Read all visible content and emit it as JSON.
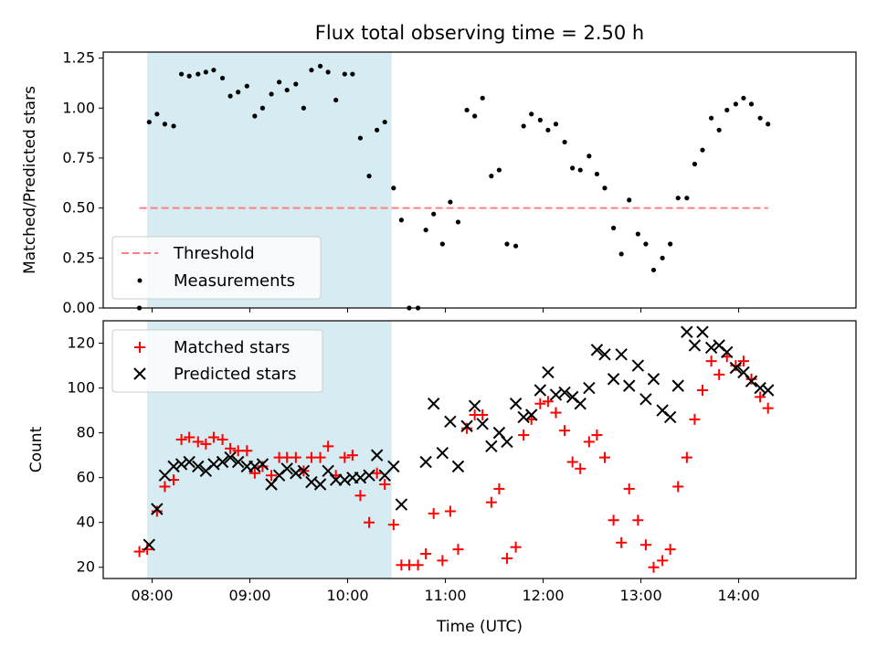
{
  "chart_data": [
    {
      "type": "scatter",
      "title": "Flux total observing time = 2.50 h",
      "xlabel": "",
      "ylabel": "Matched/Predicted stars",
      "xlim": [
        7.5,
        15.2
      ],
      "ylim": [
        0,
        1.28
      ],
      "yticks": [
        0.0,
        0.25,
        0.5,
        0.75,
        1.0,
        1.25
      ],
      "ytick_labels": [
        "0.00",
        "0.25",
        "0.50",
        "0.75",
        "1.00",
        "1.25"
      ],
      "grid": false,
      "legend_placement": "lower-left",
      "shaded_span": {
        "x": [
          7.95,
          10.45
        ],
        "color": "#add8e6"
      },
      "series": [
        {
          "name": "Threshold",
          "style": "dashed-line",
          "color": "#ff8080",
          "x": [
            7.87,
            14.3
          ],
          "y": [
            0.5,
            0.5
          ]
        },
        {
          "name": "Measurements",
          "style": "dot",
          "color": "#000000",
          "x": [
            7.87,
            7.97,
            8.05,
            8.13,
            8.22,
            8.3,
            8.38,
            8.47,
            8.55,
            8.63,
            8.72,
            8.8,
            8.88,
            8.97,
            9.05,
            9.13,
            9.22,
            9.3,
            9.38,
            9.47,
            9.55,
            9.63,
            9.72,
            9.8,
            9.88,
            9.97,
            10.05,
            10.13,
            10.22,
            10.3,
            10.38,
            10.47,
            10.55,
            10.63,
            10.72,
            10.8,
            10.88,
            10.97,
            11.05,
            11.13,
            11.22,
            11.3,
            11.38,
            11.47,
            11.55,
            11.63,
            11.72,
            11.8,
            11.88,
            11.97,
            12.05,
            12.13,
            12.22,
            12.3,
            12.38,
            12.47,
            12.55,
            12.63,
            12.72,
            12.8,
            12.88,
            12.97,
            13.05,
            13.13,
            13.22,
            13.3,
            13.38,
            13.47,
            13.55,
            13.63,
            13.72,
            13.8,
            13.88,
            13.97,
            14.05,
            14.13,
            14.22,
            14.3
          ],
          "y": [
            0.0,
            0.93,
            0.97,
            0.92,
            0.91,
            1.17,
            1.16,
            1.17,
            1.18,
            1.19,
            1.15,
            1.06,
            1.08,
            1.11,
            0.96,
            1.0,
            1.07,
            1.13,
            1.09,
            1.12,
            1.0,
            1.19,
            1.21,
            1.18,
            1.04,
            1.17,
            1.17,
            0.85,
            0.66,
            0.89,
            0.93,
            0.6,
            0.44,
            0.0,
            0.0,
            0.39,
            0.47,
            0.32,
            0.53,
            0.43,
            0.99,
            0.96,
            1.05,
            0.66,
            0.69,
            0.32,
            0.31,
            0.91,
            0.97,
            0.94,
            0.89,
            0.92,
            0.83,
            0.7,
            0.69,
            0.76,
            0.67,
            0.6,
            0.4,
            0.27,
            0.54,
            0.37,
            0.32,
            0.19,
            0.25,
            0.32,
            0.55,
            0.55,
            0.72,
            0.79,
            0.95,
            0.89,
            0.99,
            1.02,
            1.05,
            1.02,
            0.95,
            0.92
          ]
        }
      ]
    },
    {
      "type": "scatter",
      "title": "",
      "xlabel": "Time (UTC)",
      "ylabel": "Count",
      "xlim": [
        7.5,
        15.2
      ],
      "ylim": [
        15,
        130
      ],
      "xticks": [
        8,
        9,
        10,
        11,
        12,
        13,
        14
      ],
      "xtick_labels": [
        "08:00",
        "09:00",
        "10:00",
        "11:00",
        "12:00",
        "13:00",
        "14:00"
      ],
      "yticks": [
        20,
        40,
        60,
        80,
        100,
        120
      ],
      "ytick_labels": [
        "20",
        "40",
        "60",
        "80",
        "100",
        "120"
      ],
      "grid": false,
      "legend_placement": "upper-left",
      "shaded_span": {
        "x": [
          7.95,
          10.45
        ],
        "color": "#add8e6"
      },
      "series": [
        {
          "name": "Matched stars",
          "style": "plus",
          "color": "#ff0000",
          "x": [
            7.87,
            7.95,
            8.05,
            8.13,
            8.22,
            8.3,
            8.38,
            8.47,
            8.55,
            8.63,
            8.72,
            8.8,
            8.88,
            8.97,
            9.05,
            9.13,
            9.22,
            9.3,
            9.38,
            9.47,
            9.55,
            9.63,
            9.72,
            9.8,
            9.88,
            9.97,
            10.05,
            10.13,
            10.22,
            10.3,
            10.38,
            10.47,
            10.55,
            10.63,
            10.72,
            10.8,
            10.88,
            10.97,
            11.05,
            11.13,
            11.22,
            11.3,
            11.38,
            11.47,
            11.55,
            11.63,
            11.72,
            11.8,
            11.88,
            11.97,
            12.05,
            12.13,
            12.22,
            12.3,
            12.38,
            12.47,
            12.55,
            12.63,
            12.72,
            12.8,
            12.88,
            12.97,
            13.05,
            13.13,
            13.22,
            13.3,
            13.38,
            13.47,
            13.55,
            13.63,
            13.72,
            13.8,
            13.88,
            13.97,
            14.05,
            14.13,
            14.22,
            14.3
          ],
          "y": [
            27,
            28,
            45,
            56,
            59,
            77,
            78,
            76,
            75,
            78,
            77,
            73,
            72,
            72,
            62,
            65,
            61,
            69,
            69,
            69,
            63,
            69,
            69,
            74,
            61,
            69,
            70,
            52,
            40,
            62,
            57,
            39,
            21,
            21,
            21,
            26,
            44,
            23,
            45,
            28,
            82,
            88,
            88,
            49,
            55,
            24,
            29,
            79,
            86,
            93,
            94,
            89,
            81,
            67,
            64,
            76,
            79,
            69,
            41,
            31,
            55,
            41,
            30,
            20,
            23,
            28,
            56,
            69,
            86,
            99,
            112,
            106,
            114,
            110,
            112,
            104,
            96,
            91
          ]
        },
        {
          "name": "Predicted stars",
          "style": "x",
          "color": "#000000",
          "x": [
            7.97,
            8.05,
            8.13,
            8.22,
            8.3,
            8.38,
            8.47,
            8.55,
            8.63,
            8.72,
            8.8,
            8.88,
            8.97,
            9.05,
            9.13,
            9.22,
            9.3,
            9.38,
            9.47,
            9.55,
            9.63,
            9.72,
            9.8,
            9.88,
            9.97,
            10.05,
            10.13,
            10.22,
            10.3,
            10.38,
            10.47,
            10.55,
            10.8,
            10.88,
            10.97,
            11.05,
            11.13,
            11.22,
            11.3,
            11.38,
            11.47,
            11.55,
            11.63,
            11.72,
            11.8,
            11.88,
            11.97,
            12.05,
            12.13,
            12.22,
            12.3,
            12.38,
            12.47,
            12.55,
            12.63,
            12.72,
            12.8,
            12.88,
            12.97,
            13.05,
            13.13,
            13.22,
            13.3,
            13.38,
            13.47,
            13.55,
            13.63,
            13.72,
            13.8,
            13.88,
            13.97,
            14.05,
            14.13,
            14.22,
            14.3
          ],
          "y": [
            30,
            46,
            61,
            65,
            66,
            67,
            65,
            63,
            66,
            67,
            69,
            67,
            65,
            65,
            66,
            57,
            61,
            64,
            62,
            63,
            58,
            57,
            63,
            59,
            59,
            60,
            60,
            61,
            70,
            61,
            65,
            48,
            67,
            93,
            71,
            85,
            65,
            83,
            92,
            84,
            74,
            80,
            76,
            93,
            87,
            88,
            99,
            107,
            97,
            98,
            96,
            93,
            100,
            117,
            115,
            104,
            115,
            101,
            110,
            95,
            104,
            90,
            87,
            101,
            125,
            119,
            125,
            118,
            119,
            116,
            109,
            107,
            103,
            100,
            99
          ]
        }
      ]
    }
  ]
}
